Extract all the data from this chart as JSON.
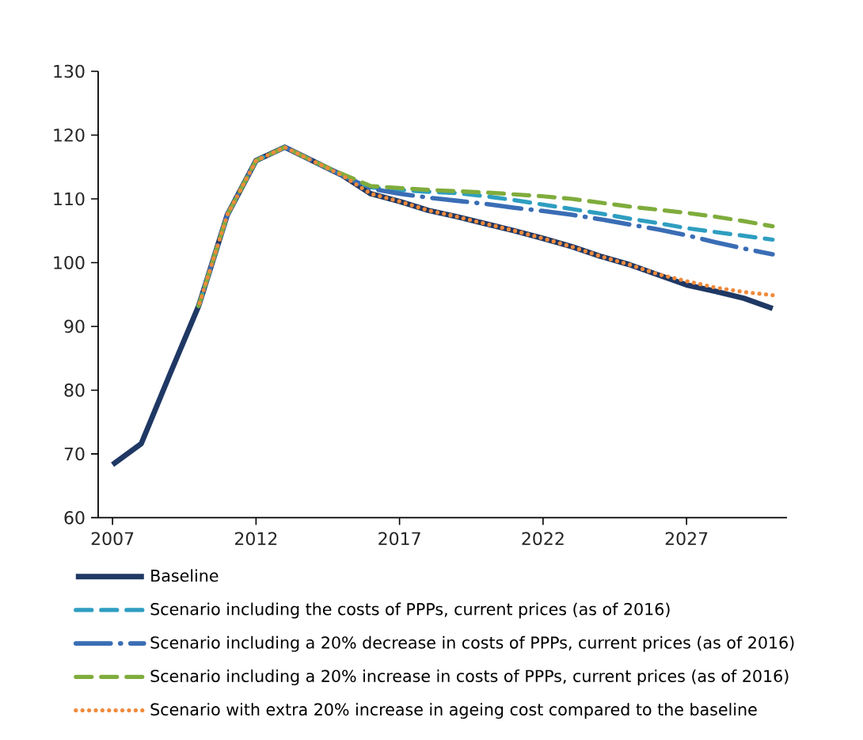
{
  "chart_data": {
    "type": "line",
    "x": [
      2007,
      2008,
      2009,
      2010,
      2011,
      2012,
      2013,
      2014,
      2015,
      2016,
      2017,
      2018,
      2019,
      2020,
      2021,
      2022,
      2023,
      2024,
      2025,
      2026,
      2027,
      2028,
      2029,
      2030
    ],
    "xlim": [
      2006.5,
      2030.5
    ],
    "xticks": [
      2007,
      2012,
      2017,
      2022,
      2027
    ],
    "ylim": [
      60,
      130
    ],
    "yticks": [
      60,
      70,
      80,
      90,
      100,
      110,
      120,
      130
    ],
    "legend": "bottom",
    "series": [
      {
        "name": "Baseline",
        "color": "#1f3864",
        "line_style": "solid",
        "values": [
          68.3,
          71.6,
          82.5,
          93.2,
          107.5,
          116,
          118.1,
          115.9,
          113.7,
          110.8,
          109.6,
          108.2,
          107.2,
          106.1,
          105,
          103.8,
          102.5,
          101,
          99.7,
          98.1,
          96.5,
          95.5,
          94.4,
          92.8
        ]
      },
      {
        "name": "Scenario including the costs of PPPs, current prices (as of 2016)",
        "color": "#2e9ec0",
        "line_style": "dashed",
        "values": [
          null,
          null,
          null,
          93.2,
          107.5,
          116,
          118.1,
          115.9,
          113.7,
          111.8,
          111.4,
          111.1,
          110.9,
          110.4,
          109.8,
          109.1,
          108.4,
          107.7,
          106.9,
          106.2,
          105.4,
          104.8,
          104.2,
          103.6
        ]
      },
      {
        "name": "Scenario including a 20% decrease in costs of PPPs, current prices (as of 2016)",
        "color": "#3a6db5",
        "line_style": "dashdot",
        "values": [
          null,
          null,
          null,
          93.2,
          107.5,
          116,
          118.1,
          115.9,
          113.7,
          111.6,
          110.8,
          110.2,
          109.7,
          109.2,
          108.6,
          108.1,
          107.5,
          106.8,
          106,
          105.2,
          104.3,
          103.2,
          102.2,
          101.3
        ]
      },
      {
        "name": "Scenario including a 20% increase in costs of PPPs, current prices (as of 2016)",
        "color": "#7fac3c",
        "line_style": "dashed",
        "values": [
          null,
          null,
          null,
          93.2,
          107.5,
          116,
          118.1,
          115.9,
          113.9,
          112,
          111.7,
          111.4,
          111.2,
          111,
          110.7,
          110.4,
          110,
          109.4,
          108.8,
          108.3,
          107.8,
          107.2,
          106.5,
          105.7
        ]
      },
      {
        "name": "Scenario with extra 20% increase in ageing cost compared to the baseline",
        "color": "#f08a3c",
        "line_style": "dotted",
        "values": [
          null,
          null,
          null,
          93.2,
          107.5,
          116,
          118.1,
          115.9,
          113.7,
          110.8,
          109.6,
          108.2,
          107.2,
          106.1,
          105,
          103.8,
          102.5,
          101,
          99.7,
          98.2,
          97.1,
          96.1,
          95.4,
          94.9
        ]
      }
    ]
  }
}
